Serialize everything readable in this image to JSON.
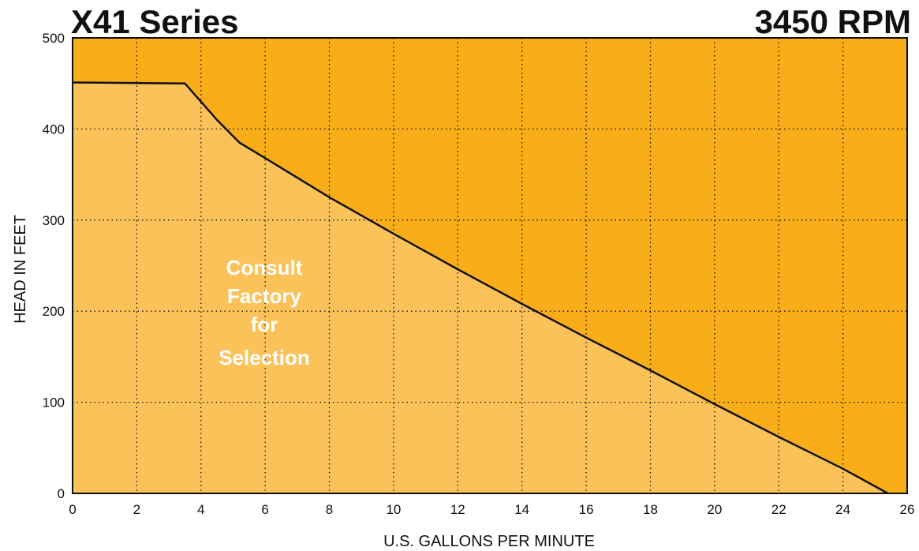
{
  "colors": {
    "background": "#ffffff",
    "upper_region": "#f8ad19",
    "lower_region": "#fbc25a",
    "curve": "#111111",
    "grid": "#111111",
    "annotation_text": "#ffffff"
  },
  "chart_data": {
    "type": "area",
    "title_left": "X41 Series",
    "title_right": "3450 RPM",
    "xlabel": "U.S. GALLONS PER MINUTE",
    "ylabel": "HEAD IN FEET",
    "xlim": [
      0,
      26
    ],
    "ylim": [
      0,
      500
    ],
    "x_ticks": [
      0,
      2,
      4,
      6,
      8,
      10,
      12,
      14,
      16,
      18,
      20,
      22,
      24,
      26
    ],
    "y_ticks": [
      0,
      100,
      200,
      300,
      400,
      500
    ],
    "grid": "dotted",
    "series": [
      {
        "x": [
          0,
          3.5,
          4.5,
          5.2,
          6,
          8,
          10,
          12,
          14,
          16,
          18,
          20,
          22,
          24,
          25.4
        ],
        "y": [
          451,
          450,
          410,
          385,
          368,
          325,
          285,
          246,
          208,
          171,
          135,
          98,
          62,
          27,
          0
        ]
      }
    ],
    "annotation": [
      "Consult",
      "Factory",
      "for",
      "Selection"
    ]
  }
}
